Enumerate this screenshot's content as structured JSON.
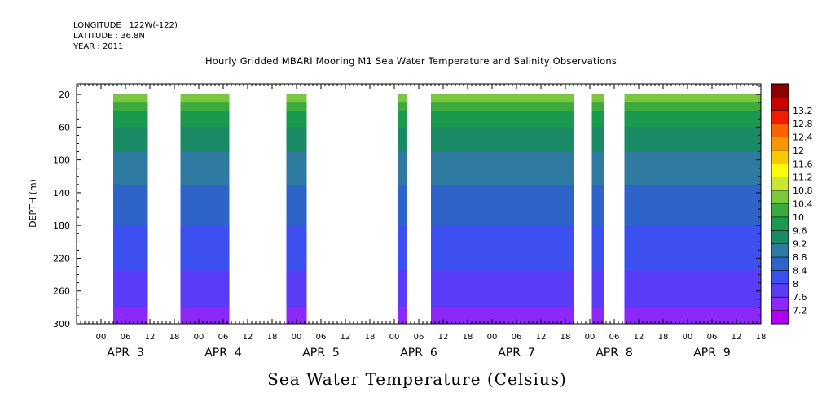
{
  "header": {
    "longitude": "LONGITUDE : 122W(-122)",
    "latitude": "LATITUDE : 36.8N",
    "year": "YEAR : 2011"
  },
  "chart_data": {
    "type": "heatmap",
    "title": "Hourly Gridded MBARI Mooring M1 Sea Water Temperature and Salinity Observations",
    "xlabel": "Sea Water Temperature (Celsius)",
    "ylabel": "DEPTH (m)",
    "y_axis": {
      "ticks": [
        20,
        60,
        100,
        140,
        180,
        220,
        260,
        300
      ],
      "range": [
        7,
        300
      ],
      "inverted": true
    },
    "x_axis": {
      "unit": "hours since 2011-04-02 18:00",
      "range": [
        0,
        168
      ],
      "hour_ticks": [
        {
          "t": 6,
          "label": "00"
        },
        {
          "t": 12,
          "label": "06"
        },
        {
          "t": 18,
          "label": "12"
        },
        {
          "t": 24,
          "label": "18"
        },
        {
          "t": 30,
          "label": "00"
        },
        {
          "t": 36,
          "label": "06"
        },
        {
          "t": 42,
          "label": "12"
        },
        {
          "t": 48,
          "label": "18"
        },
        {
          "t": 54,
          "label": "00"
        },
        {
          "t": 60,
          "label": "06"
        },
        {
          "t": 66,
          "label": "12"
        },
        {
          "t": 72,
          "label": "18"
        },
        {
          "t": 78,
          "label": "00"
        },
        {
          "t": 84,
          "label": "06"
        },
        {
          "t": 90,
          "label": "12"
        },
        {
          "t": 96,
          "label": "18"
        },
        {
          "t": 102,
          "label": "00"
        },
        {
          "t": 108,
          "label": "06"
        },
        {
          "t": 114,
          "label": "12"
        },
        {
          "t": 120,
          "label": "18"
        },
        {
          "t": 126,
          "label": "00"
        },
        {
          "t": 132,
          "label": "06"
        },
        {
          "t": 138,
          "label": "12"
        },
        {
          "t": 144,
          "label": "18"
        },
        {
          "t": 150,
          "label": "00"
        },
        {
          "t": 156,
          "label": "06"
        },
        {
          "t": 162,
          "label": "12"
        },
        {
          "t": 168,
          "label": "18"
        }
      ],
      "day_labels": [
        {
          "t": 12,
          "label": "APR  3"
        },
        {
          "t": 36,
          "label": "APR  4"
        },
        {
          "t": 60,
          "label": "APR  5"
        },
        {
          "t": 84,
          "label": "APR  6"
        },
        {
          "t": 108,
          "label": "APR  7"
        },
        {
          "t": 132,
          "label": "APR  8"
        },
        {
          "t": 156,
          "label": "APR  9"
        }
      ]
    },
    "data_segments": [
      {
        "start": 9,
        "end": 17.5
      },
      {
        "start": 25.5,
        "end": 37.5
      },
      {
        "start": 51.5,
        "end": 56.5
      },
      {
        "start": 79,
        "end": 81
      },
      {
        "start": 87,
        "end": 122
      },
      {
        "start": 126.5,
        "end": 129.5
      },
      {
        "start": 134.5,
        "end": 168
      }
    ],
    "temperature_profile": [
      {
        "depth": 20,
        "temp": 10.9
      },
      {
        "depth": 40,
        "temp": 10.0
      },
      {
        "depth": 60,
        "temp": 9.6
      },
      {
        "depth": 80,
        "temp": 9.3
      },
      {
        "depth": 100,
        "temp": 9.1
      },
      {
        "depth": 120,
        "temp": 8.9
      },
      {
        "depth": 140,
        "temp": 8.7
      },
      {
        "depth": 160,
        "temp": 8.55
      },
      {
        "depth": 180,
        "temp": 8.4
      },
      {
        "depth": 200,
        "temp": 8.25
      },
      {
        "depth": 220,
        "temp": 8.1
      },
      {
        "depth": 240,
        "temp": 7.95
      },
      {
        "depth": 260,
        "temp": 7.8
      },
      {
        "depth": 280,
        "temp": 7.6
      },
      {
        "depth": 300,
        "temp": 7.4
      }
    ],
    "colorbar": {
      "levels": [
        7.2,
        7.6,
        8,
        8.4,
        8.8,
        9.2,
        9.6,
        10,
        10.4,
        10.8,
        11.2,
        11.6,
        12,
        12.4,
        12.8,
        13.2
      ],
      "labels": [
        "7.2",
        "7.6",
        "8",
        "8.4",
        "8.8",
        "9.2",
        "9.6",
        "10",
        "10.4",
        "10.8",
        "11.2",
        "11.6",
        "12",
        "12.4",
        "12.8",
        "13.2"
      ],
      "colors": [
        "#b400f0",
        "#8c28f8",
        "#5a3cf8",
        "#3c50f0",
        "#2e64c8",
        "#2f7aa0",
        "#1a8a64",
        "#1a9a4e",
        "#3caa3c",
        "#7cc83c",
        "#c8e632",
        "#fafa0a",
        "#fac800",
        "#fa9600",
        "#fa6400",
        "#f01e00",
        "#c80000",
        "#8c0000"
      ]
    }
  }
}
